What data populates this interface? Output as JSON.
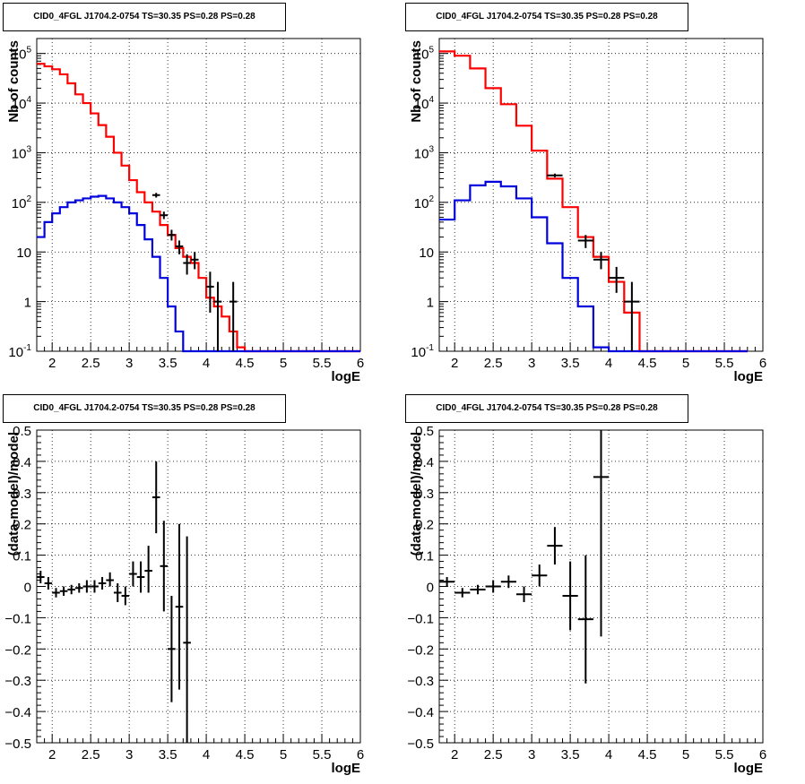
{
  "colors": {
    "data": "#000000",
    "total_model": "#ff0000",
    "source_model": "#0000dd",
    "grid": "#000000"
  },
  "chart_data": [
    {
      "id": "spectrum-left",
      "type": "line",
      "title": "CID0_4FGL J1704.2-0754 TS=30.35 PS=0.28 PS=0.28",
      "xlabel": "logE",
      "ylabel": "Nb of counts",
      "xlim": [
        1.8,
        6.0
      ],
      "ylim": [
        0.1,
        200000
      ],
      "yscale": "log",
      "grid": true,
      "x_ticks": [
        "2",
        "2.5",
        "3",
        "3.5",
        "4",
        "4.5",
        "5",
        "5.5",
        "6"
      ],
      "y_ticks": [
        "10^-1",
        "1",
        "10",
        "10^2",
        "10^3",
        "10^4",
        "10^5"
      ],
      "bin_edges": [
        1.8,
        1.9,
        2.0,
        2.1,
        2.2,
        2.3,
        2.4,
        2.5,
        2.6,
        2.7,
        2.8,
        2.9,
        3.0,
        3.1,
        3.2,
        3.3,
        3.4,
        3.5,
        3.6,
        3.7,
        3.8,
        3.9,
        4.0,
        4.1,
        4.2,
        4.3,
        4.4,
        4.5,
        4.6,
        4.7,
        4.8,
        4.9,
        5.0,
        5.1,
        5.2,
        5.3,
        5.4,
        5.5,
        5.6,
        5.7,
        5.8,
        5.9,
        6.0
      ],
      "series": [
        {
          "name": "",
          "role": "total_model",
          "values": [
            62000,
            55000,
            48000,
            38000,
            25000,
            15000,
            10000,
            6200,
            3600,
            2100,
            1000,
            550,
            280,
            160,
            100,
            65,
            35,
            22,
            12,
            8,
            6,
            3,
            1.2,
            0.8,
            0.5,
            0.25,
            0.12,
            0.1,
            0.1,
            0.1,
            0.1,
            0.1,
            0.1,
            0.1,
            0.1,
            0.1,
            0.1,
            0.1,
            0.1,
            0.1,
            0.1,
            0.1
          ]
        },
        {
          "name": "",
          "role": "source_model",
          "values": [
            20,
            40,
            60,
            80,
            100,
            110,
            120,
            130,
            135,
            120,
            100,
            80,
            60,
            35,
            18,
            8,
            3,
            0.8,
            0.25,
            0.1,
            0.1,
            0.1,
            0.1,
            0.1,
            0.1,
            0.1,
            0.1,
            0.1,
            0.1,
            0.1,
            0.1,
            0.1,
            0.1,
            0.1,
            0.1,
            0.1,
            0.1,
            0.1,
            0.1,
            0.1,
            0.1,
            0.1
          ]
        },
        {
          "name": "",
          "role": "data",
          "points": [
            {
              "x": 3.35,
              "y": 140,
              "xerr": 0.05,
              "ylo": 125,
              "yhi": 155
            },
            {
              "x": 3.45,
              "y": 55,
              "xerr": 0.05,
              "ylo": 46,
              "yhi": 65
            },
            {
              "x": 3.55,
              "y": 22,
              "xerr": 0.05,
              "ylo": 17,
              "yhi": 28
            },
            {
              "x": 3.65,
              "y": 13,
              "xerr": 0.05,
              "ylo": 9,
              "yhi": 17
            },
            {
              "x": 3.75,
              "y": 6,
              "xerr": 0.05,
              "ylo": 3.5,
              "yhi": 9
            },
            {
              "x": 3.85,
              "y": 7,
              "xerr": 0.05,
              "ylo": 4.5,
              "yhi": 10
            },
            {
              "x": 4.05,
              "y": 2,
              "xerr": 0.05,
              "ylo": 0.6,
              "yhi": 4
            },
            {
              "x": 4.15,
              "y": 1,
              "xerr": 0.05,
              "ylo": 0.1,
              "yhi": 2.5
            },
            {
              "x": 4.35,
              "y": 1,
              "xerr": 0.05,
              "ylo": 0.1,
              "yhi": 2.5
            }
          ]
        }
      ]
    },
    {
      "id": "spectrum-right",
      "type": "line",
      "title": "CID0_4FGL J1704.2-0754 TS=30.35 PS=0.28 PS=0.28",
      "xlabel": "logE",
      "ylabel": "Nb of counts",
      "xlim": [
        1.8,
        6.0
      ],
      "ylim": [
        0.1,
        200000
      ],
      "yscale": "log",
      "grid": true,
      "x_ticks": [
        "2",
        "2.5",
        "3",
        "3.5",
        "4",
        "4.5",
        "5",
        "5.5",
        "6"
      ],
      "y_ticks": [
        "10^-1",
        "1",
        "10",
        "10^2",
        "10^3",
        "10^4",
        "10^5"
      ],
      "bin_edges": [
        1.8,
        2.0,
        2.2,
        2.4,
        2.6,
        2.8,
        3.0,
        3.2,
        3.4,
        3.6,
        3.8,
        4.0,
        4.2,
        4.4,
        4.6,
        4.8,
        5.0,
        5.2,
        5.4,
        5.6,
        5.8,
        6.0
      ],
      "series": [
        {
          "name": "",
          "role": "total_model",
          "values": [
            110000,
            90000,
            50000,
            20000,
            9500,
            3500,
            1100,
            300,
            80,
            20,
            8,
            2.5,
            0.6,
            0.1,
            0.1,
            0.1,
            0.1,
            0.1,
            0.1,
            0.1
          ]
        },
        {
          "name": "",
          "role": "source_model",
          "values": [
            45,
            110,
            220,
            260,
            210,
            120,
            50,
            15,
            3,
            0.8,
            0.12,
            0.1,
            0.1,
            0.1,
            0.1,
            0.1,
            0.1,
            0.1,
            0.1,
            0.1
          ]
        },
        {
          "name": "",
          "role": "data",
          "points": [
            {
              "x": 3.3,
              "y": 350,
              "xerr": 0.1,
              "ylo": 320,
              "yhi": 380
            },
            {
              "x": 3.7,
              "y": 17,
              "xerr": 0.1,
              "ylo": 12,
              "yhi": 22
            },
            {
              "x": 3.9,
              "y": 7,
              "xerr": 0.1,
              "ylo": 4.5,
              "yhi": 10
            },
            {
              "x": 4.1,
              "y": 3,
              "xerr": 0.1,
              "ylo": 1.5,
              "yhi": 5
            },
            {
              "x": 4.3,
              "y": 1,
              "xerr": 0.1,
              "ylo": 0.1,
              "yhi": 2.5
            }
          ]
        }
      ]
    },
    {
      "id": "residual-left",
      "type": "scatter",
      "title": "CID0_4FGL J1704.2-0754 TS=30.35 PS=0.28 PS=0.28",
      "xlabel": "logE",
      "ylabel": "(data-model)/model",
      "xlim": [
        1.8,
        6.0
      ],
      "ylim": [
        -0.5,
        0.5
      ],
      "grid": true,
      "x_ticks": [
        "2",
        "2.5",
        "3",
        "3.5",
        "4",
        "4.5",
        "5",
        "5.5",
        "6"
      ],
      "y_ticks": [
        "−0.5",
        "−0.4",
        "−0.3",
        "−0.2",
        "−0.1",
        "0",
        "0.1",
        "0.2",
        "0.3",
        "0.4",
        "0.5"
      ],
      "series": [
        {
          "name": "",
          "role": "data",
          "points": [
            {
              "x": 1.85,
              "y": 0.03,
              "xerr": 0.05,
              "ylo": 0.01,
              "yhi": 0.05
            },
            {
              "x": 1.95,
              "y": 0.01,
              "xerr": 0.05,
              "ylo": -0.01,
              "yhi": 0.03
            },
            {
              "x": 2.05,
              "y": -0.02,
              "xerr": 0.05,
              "ylo": -0.035,
              "yhi": -0.005
            },
            {
              "x": 2.15,
              "y": -0.015,
              "xerr": 0.05,
              "ylo": -0.03,
              "yhi": 0.0
            },
            {
              "x": 2.25,
              "y": -0.01,
              "xerr": 0.05,
              "ylo": -0.025,
              "yhi": 0.005
            },
            {
              "x": 2.35,
              "y": -0.005,
              "xerr": 0.05,
              "ylo": -0.02,
              "yhi": 0.01
            },
            {
              "x": 2.45,
              "y": 0.0,
              "xerr": 0.05,
              "ylo": -0.02,
              "yhi": 0.02
            },
            {
              "x": 2.55,
              "y": 0.0,
              "xerr": 0.05,
              "ylo": -0.02,
              "yhi": 0.02
            },
            {
              "x": 2.65,
              "y": 0.01,
              "xerr": 0.05,
              "ylo": -0.01,
              "yhi": 0.03
            },
            {
              "x": 2.75,
              "y": 0.02,
              "xerr": 0.05,
              "ylo": 0.0,
              "yhi": 0.045
            },
            {
              "x": 2.85,
              "y": -0.02,
              "xerr": 0.05,
              "ylo": -0.05,
              "yhi": 0.01
            },
            {
              "x": 2.95,
              "y": -0.03,
              "xerr": 0.05,
              "ylo": -0.06,
              "yhi": 0.0
            },
            {
              "x": 3.05,
              "y": 0.04,
              "xerr": 0.05,
              "ylo": 0.0,
              "yhi": 0.08
            },
            {
              "x": 3.15,
              "y": 0.03,
              "xerr": 0.05,
              "ylo": -0.02,
              "yhi": 0.08
            },
            {
              "x": 3.25,
              "y": 0.05,
              "xerr": 0.05,
              "ylo": -0.02,
              "yhi": 0.13
            },
            {
              "x": 3.35,
              "y": 0.285,
              "xerr": 0.05,
              "ylo": 0.17,
              "yhi": 0.4
            },
            {
              "x": 3.45,
              "y": 0.065,
              "xerr": 0.05,
              "ylo": -0.08,
              "yhi": 0.21
            },
            {
              "x": 3.55,
              "y": -0.2,
              "xerr": 0.05,
              "ylo": -0.37,
              "yhi": -0.03
            },
            {
              "x": 3.65,
              "y": -0.065,
              "xerr": 0.05,
              "ylo": -0.33,
              "yhi": 0.2
            },
            {
              "x": 3.75,
              "y": -0.18,
              "xerr": 0.05,
              "ylo": -0.5,
              "yhi": 0.16
            }
          ]
        }
      ]
    },
    {
      "id": "residual-right",
      "type": "scatter",
      "title": "CID0_4FGL J1704.2-0754 TS=30.35 PS=0.28 PS=0.28",
      "xlabel": "logE",
      "ylabel": "(data-model)/model",
      "xlim": [
        1.8,
        6.0
      ],
      "ylim": [
        -0.5,
        0.5
      ],
      "grid": true,
      "x_ticks": [
        "2",
        "2.5",
        "3",
        "3.5",
        "4",
        "4.5",
        "5",
        "5.5",
        "6"
      ],
      "y_ticks": [
        "−0.5",
        "−0.4",
        "−0.3",
        "−0.2",
        "−0.1",
        "0",
        "0.1",
        "0.2",
        "0.3",
        "0.4",
        "0.5"
      ],
      "series": [
        {
          "name": "",
          "role": "data",
          "points": [
            {
              "x": 1.9,
              "y": 0.015,
              "xerr": 0.1,
              "ylo": 0.0,
              "yhi": 0.03
            },
            {
              "x": 2.1,
              "y": -0.02,
              "xerr": 0.1,
              "ylo": -0.035,
              "yhi": -0.005
            },
            {
              "x": 2.3,
              "y": -0.01,
              "xerr": 0.1,
              "ylo": -0.025,
              "yhi": 0.005
            },
            {
              "x": 2.5,
              "y": 0.0,
              "xerr": 0.1,
              "ylo": -0.02,
              "yhi": 0.02
            },
            {
              "x": 2.7,
              "y": 0.015,
              "xerr": 0.1,
              "ylo": -0.005,
              "yhi": 0.035
            },
            {
              "x": 2.9,
              "y": -0.025,
              "xerr": 0.1,
              "ylo": -0.05,
              "yhi": 0.0
            },
            {
              "x": 3.1,
              "y": 0.035,
              "xerr": 0.1,
              "ylo": 0.0,
              "yhi": 0.07
            },
            {
              "x": 3.3,
              "y": 0.13,
              "xerr": 0.1,
              "ylo": 0.07,
              "yhi": 0.19
            },
            {
              "x": 3.5,
              "y": -0.03,
              "xerr": 0.1,
              "ylo": -0.14,
              "yhi": 0.08
            },
            {
              "x": 3.7,
              "y": -0.105,
              "xerr": 0.1,
              "ylo": -0.31,
              "yhi": 0.1
            },
            {
              "x": 3.9,
              "y": 0.35,
              "xerr": 0.1,
              "ylo": -0.16,
              "yhi": 0.5
            }
          ]
        }
      ]
    }
  ]
}
